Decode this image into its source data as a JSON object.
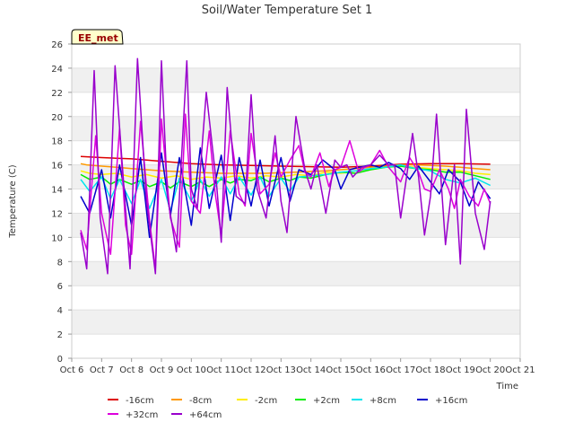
{
  "chart_data": {
    "type": "line",
    "title": "Soil/Water Temperature Set 1",
    "xlabel": "Time",
    "ylabel": "Temperature (C)",
    "ylim": [
      0,
      26
    ],
    "xlim": [
      "Oct 6",
      "Oct 21"
    ],
    "grid": "horizontal bands",
    "legend_position": "bottom",
    "badge": "EE_met",
    "y_ticks": [
      "0",
      "2",
      "4",
      "6",
      "8",
      "10",
      "12",
      "14",
      "16",
      "18",
      "20",
      "22",
      "24",
      "26"
    ],
    "x_ticks": [
      "Oct 6",
      "Oct 7",
      "Oct 8",
      "Oct 9",
      "Oct 10",
      "Oct 11",
      "Oct 12",
      "Oct 13",
      "Oct 14",
      "Oct 15",
      "Oct 16",
      "Oct 17",
      "Oct 18",
      "Oct 19",
      "Oct 20",
      "Oct 21"
    ],
    "series": [
      {
        "name": "-16cm",
        "color": "#dd0000",
        "x": [
          6.3,
          7.0,
          8.0,
          9.0,
          10.0,
          11.0,
          12.0,
          13.0,
          14.0,
          15.0,
          16.0,
          17.0,
          18.0,
          19.0,
          20.0
        ],
        "y": [
          16.7,
          16.6,
          16.5,
          16.3,
          16.1,
          16.0,
          15.95,
          15.9,
          15.85,
          15.8,
          15.9,
          16.05,
          16.1,
          16.1,
          16.05
        ]
      },
      {
        "name": "-8cm",
        "color": "#ff9900",
        "x": [
          6.3,
          6.5,
          7.0,
          7.5,
          8.0,
          8.5,
          9.0,
          9.5,
          10.0,
          10.5,
          11.0,
          11.5,
          12.0,
          12.5,
          13.0,
          13.5,
          14.0,
          14.5,
          15.0,
          15.5,
          16.0,
          16.5,
          17.0,
          17.5,
          18.0,
          18.5,
          19.0,
          19.5,
          20.0
        ],
        "y": [
          16.1,
          16.0,
          15.9,
          15.8,
          15.7,
          15.6,
          15.5,
          15.45,
          15.4,
          15.35,
          15.3,
          15.3,
          15.3,
          15.3,
          15.35,
          15.4,
          15.45,
          15.5,
          15.6,
          15.7,
          15.8,
          15.9,
          16.0,
          16.0,
          15.95,
          15.9,
          15.8,
          15.7,
          15.6
        ]
      },
      {
        "name": "-2cm",
        "color": "#ffee00",
        "x": [
          6.3,
          6.6,
          7.0,
          7.5,
          8.0,
          8.5,
          9.0,
          9.5,
          10.0,
          10.5,
          11.0,
          11.5,
          12.0,
          12.5,
          13.0,
          13.5,
          14.0,
          14.5,
          15.0,
          15.5,
          16.0,
          16.5,
          17.0,
          17.5,
          18.0,
          18.5,
          19.0,
          19.5,
          20.0
        ],
        "y": [
          15.5,
          15.3,
          15.2,
          15.3,
          15.0,
          15.2,
          14.9,
          15.1,
          14.8,
          15.0,
          14.9,
          15.1,
          14.9,
          15.1,
          15.0,
          15.2,
          15.1,
          15.4,
          15.3,
          15.5,
          15.6,
          15.8,
          15.9,
          15.8,
          15.7,
          15.6,
          15.5,
          15.3,
          15.2
        ]
      },
      {
        "name": "+2cm",
        "color": "#00ee00",
        "x": [
          6.3,
          6.6,
          7.0,
          7.3,
          7.6,
          8.0,
          8.3,
          8.6,
          9.0,
          9.3,
          9.6,
          10.0,
          10.3,
          10.6,
          11.0,
          11.3,
          11.6,
          12.0,
          12.3,
          12.6,
          13.0,
          13.3,
          13.6,
          14.0,
          14.5,
          15.0,
          15.5,
          16.0,
          16.5,
          17.0,
          17.5,
          18.0,
          18.5,
          19.0,
          19.5,
          20.0
        ],
        "y": [
          15.2,
          14.8,
          15.0,
          14.4,
          14.8,
          14.4,
          14.7,
          14.2,
          14.6,
          14.1,
          14.6,
          14.2,
          14.6,
          14.2,
          14.8,
          14.5,
          14.8,
          14.7,
          15.0,
          14.6,
          14.9,
          14.7,
          15.0,
          14.9,
          15.2,
          15.4,
          15.3,
          15.6,
          15.8,
          15.9,
          15.7,
          15.6,
          15.4,
          15.4,
          15.1,
          14.8
        ]
      },
      {
        "name": "+8cm",
        "color": "#00e5ee",
        "x": [
          6.3,
          6.6,
          7.0,
          7.3,
          7.6,
          8.0,
          8.3,
          8.6,
          9.0,
          9.3,
          9.6,
          10.0,
          10.3,
          10.6,
          11.0,
          11.3,
          11.6,
          12.0,
          12.3,
          12.6,
          13.0,
          13.3,
          13.6,
          14.0,
          14.5,
          15.0,
          15.5,
          16.0,
          16.5,
          17.0,
          17.5,
          18.0,
          18.5,
          19.0,
          19.5,
          20.0
        ],
        "y": [
          14.8,
          13.8,
          15.0,
          13.2,
          14.8,
          12.8,
          14.8,
          12.4,
          14.8,
          12.2,
          14.9,
          13.0,
          14.8,
          13.4,
          15.0,
          13.6,
          15.0,
          13.5,
          15.0,
          13.4,
          14.9,
          13.8,
          15.0,
          15.1,
          15.2,
          15.4,
          15.5,
          15.7,
          15.8,
          16.0,
          15.7,
          15.5,
          14.8,
          14.5,
          14.9,
          14.3
        ]
      },
      {
        "name": "+16cm",
        "color": "#0000cc",
        "x": [
          6.3,
          6.6,
          7.0,
          7.3,
          7.6,
          8.0,
          8.3,
          8.6,
          9.0,
          9.3,
          9.6,
          10.0,
          10.3,
          10.6,
          11.0,
          11.3,
          11.6,
          12.0,
          12.3,
          12.6,
          13.0,
          13.3,
          13.6,
          14.0,
          14.4,
          14.8,
          15.0,
          15.3,
          15.6,
          16.0,
          16.3,
          16.6,
          17.0,
          17.3,
          17.6,
          18.0,
          18.3,
          18.6,
          19.0,
          19.3,
          19.6,
          20.0
        ],
        "y": [
          13.4,
          12.0,
          15.6,
          11.6,
          16.0,
          11.0,
          16.6,
          10.0,
          17.0,
          11.8,
          16.6,
          11.0,
          17.4,
          12.4,
          16.8,
          11.4,
          16.6,
          12.6,
          16.4,
          12.6,
          16.6,
          13.0,
          15.6,
          15.2,
          16.4,
          15.6,
          14.0,
          15.6,
          15.8,
          16.0,
          15.8,
          16.2,
          15.7,
          14.8,
          15.9,
          14.6,
          13.6,
          15.6,
          14.6,
          12.6,
          14.6,
          13.2
        ]
      },
      {
        "name": "+32cm",
        "color": "#dd00dd",
        "x": [
          6.3,
          6.5,
          6.8,
          7.0,
          7.3,
          7.6,
          7.8,
          8.0,
          8.3,
          8.6,
          8.8,
          9.0,
          9.3,
          9.6,
          9.8,
          10.0,
          10.3,
          10.6,
          10.8,
          11.0,
          11.3,
          11.6,
          11.8,
          12.0,
          12.3,
          12.6,
          12.8,
          13.0,
          13.3,
          13.6,
          13.8,
          14.0,
          14.3,
          14.6,
          14.8,
          15.0,
          15.3,
          15.6,
          15.8,
          16.0,
          16.3,
          16.6,
          16.8,
          17.0,
          17.3,
          17.6,
          17.8,
          18.0,
          18.3,
          18.6,
          18.8,
          19.0,
          19.3,
          19.6,
          19.8,
          20.0
        ],
        "y": [
          10.6,
          9.0,
          18.4,
          12.0,
          8.6,
          19.0,
          11.0,
          8.6,
          19.6,
          11.4,
          7.4,
          19.8,
          11.6,
          9.2,
          20.2,
          13.0,
          12.0,
          18.8,
          13.6,
          10.2,
          18.8,
          13.6,
          12.6,
          18.6,
          13.6,
          14.4,
          17.0,
          15.0,
          16.4,
          17.6,
          15.4,
          15.0,
          17.0,
          14.2,
          15.6,
          15.8,
          18.0,
          15.4,
          15.8,
          16.0,
          17.2,
          15.8,
          15.2,
          14.6,
          16.6,
          15.4,
          14.0,
          13.8,
          15.6,
          14.0,
          12.4,
          14.8,
          13.4,
          12.6,
          14.0,
          12.8
        ]
      },
      {
        "name": "+64cm",
        "color": "#9900cc",
        "x": [
          6.3,
          6.5,
          6.75,
          6.95,
          7.2,
          7.45,
          7.75,
          7.95,
          8.2,
          8.5,
          8.8,
          9.0,
          9.2,
          9.5,
          9.85,
          10.0,
          10.2,
          10.5,
          10.85,
          11.0,
          11.2,
          11.5,
          11.8,
          12.0,
          12.2,
          12.5,
          12.8,
          13.0,
          13.2,
          13.5,
          13.8,
          14.0,
          14.2,
          14.5,
          14.8,
          15.0,
          15.2,
          15.4,
          15.7,
          16.0,
          16.3,
          16.6,
          16.8,
          17.0,
          17.2,
          17.4,
          17.6,
          17.8,
          18.0,
          18.2,
          18.5,
          18.8,
          19.0,
          19.2,
          19.5,
          19.8,
          20.0
        ],
        "y": [
          10.4,
          7.4,
          23.8,
          11.6,
          7.0,
          24.2,
          14.0,
          7.4,
          24.8,
          13.0,
          7.0,
          24.6,
          13.4,
          8.8,
          24.6,
          14.0,
          12.4,
          22.0,
          14.2,
          9.6,
          22.4,
          13.4,
          12.8,
          21.8,
          14.0,
          11.6,
          18.4,
          13.0,
          10.4,
          20.0,
          15.6,
          14.0,
          16.0,
          12.0,
          16.4,
          15.8,
          16.0,
          15.0,
          15.8,
          16.0,
          16.8,
          16.0,
          16.0,
          11.6,
          15.0,
          18.6,
          15.0,
          10.2,
          13.4,
          20.2,
          9.4,
          16.0,
          7.8,
          20.6,
          12.0,
          9.0,
          13.0
        ]
      }
    ]
  }
}
